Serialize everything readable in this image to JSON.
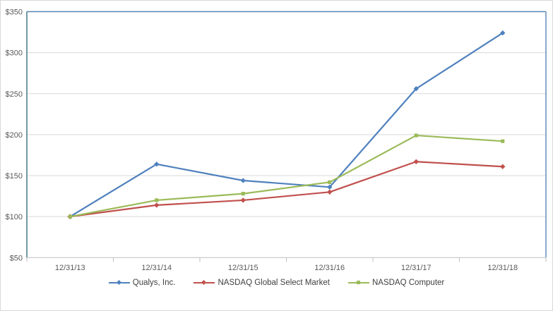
{
  "chart_data": {
    "type": "line",
    "title": "",
    "xlabel": "",
    "ylabel": "",
    "x_categories": [
      "12/31/13",
      "12/31/14",
      "12/31/15",
      "12/31/16",
      "12/31/17",
      "12/31/18"
    ],
    "series": [
      {
        "name": "Qualys, Inc.",
        "values": [
          100,
          164,
          144,
          136,
          256,
          324
        ],
        "color": "#4f81bd",
        "marker": "diamond"
      },
      {
        "name": "NASDAQ Global Select Market",
        "values": [
          100,
          114,
          120,
          130,
          167,
          161
        ],
        "color": "#c0504d",
        "marker": "diamond"
      },
      {
        "name": "NASDAQ Computer",
        "values": [
          100,
          120,
          128,
          142,
          199,
          192
        ],
        "color": "#9bbb59",
        "marker": "square"
      }
    ],
    "y_axis": {
      "min": 50,
      "max": 350,
      "step": 50,
      "tick_labels_top_to_bottom": [
        "$350",
        "$300",
        "$250",
        "$200",
        "$150",
        "$100",
        "$50"
      ],
      "format": "currency"
    },
    "grid": true,
    "legend_position": "bottom"
  },
  "colors": {
    "gridline": "#d9d9d9",
    "plot_border": "#5585b5",
    "value_axis_line": "#4e7e90",
    "category_axis_line": "#bfbfbf",
    "axis_label_text": "#595959",
    "legend_text": "#404040",
    "frame_border": "#d9d9d9",
    "background": "#ffffff"
  }
}
